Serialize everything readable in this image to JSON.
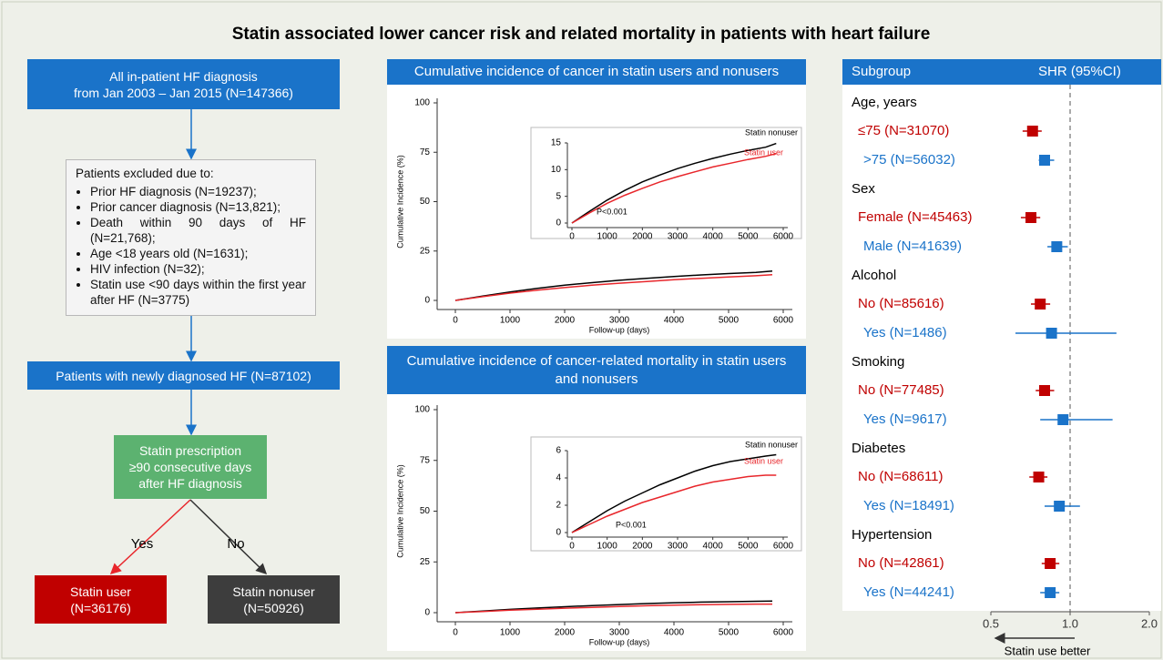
{
  "title": "Statin associated lower cancer risk and related mortality in patients with heart failure",
  "flowchart": {
    "start": [
      "All in-patient HF diagnosis",
      "from Jan 2003 – Jan 2015 (N=147366)"
    ],
    "exclusions": {
      "heading": "Patients excluded due to:",
      "items": [
        "Prior HF diagnosis (N=19237);",
        "Prior cancer diagnosis (N=13,821);",
        "Death within 90 days of HF (N=21,768);",
        "Age <18 years old (N=1631);",
        "HIV infection (N=32);",
        "Statin use <90 days within the first year after HF (N=3775)"
      ]
    },
    "cohort": "Patients with newly diagnosed HF (N=87102)",
    "criterion": [
      "Statin prescription",
      "≥90 consecutive days",
      "after HF diagnosis"
    ],
    "yes": "Yes",
    "no": "No",
    "user": [
      "Statin user",
      "(N=36176)"
    ],
    "nonuser": [
      "Statin nonuser",
      "(N=50926)"
    ]
  },
  "chart_data": [
    {
      "type": "line",
      "title": "Cumulative incidence of cancer in statin users and nonusers",
      "xlabel": "Follow-up (days)",
      "ylabel": "Cumulative Incidence (%)",
      "x": [
        0,
        500,
        1000,
        1500,
        2000,
        2500,
        3000,
        3500,
        4000,
        4500,
        5000,
        5500,
        5800
      ],
      "series": [
        {
          "name": "Statin nonuser",
          "color": "#000000",
          "values": [
            0,
            2.2,
            4.3,
            6.1,
            7.7,
            9.0,
            10.2,
            11.2,
            12.1,
            12.9,
            13.6,
            14.2,
            14.9
          ]
        },
        {
          "name": "Statin user",
          "color": "#e8262b",
          "values": [
            0,
            1.9,
            3.7,
            5.2,
            6.5,
            7.7,
            8.7,
            9.6,
            10.5,
            11.2,
            11.9,
            12.5,
            13.0
          ]
        }
      ],
      "xlim": [
        0,
        6000
      ],
      "xticks": [
        0,
        1000,
        2000,
        3000,
        4000,
        5000,
        6000
      ],
      "ylim": [
        0,
        100
      ],
      "yticks": [
        0,
        25,
        50,
        75,
        100
      ],
      "annotation": "P<0.001",
      "inset": {
        "xlim": [
          0,
          6000
        ],
        "xticks": [
          0,
          1000,
          2000,
          3000,
          4000,
          5000,
          6000
        ],
        "ylim": [
          0,
          15
        ],
        "yticks": [
          0,
          5,
          10,
          15
        ]
      }
    },
    {
      "type": "line",
      "title": "Cumulative incidence of cancer-related mortality in statin users and nonusers",
      "xlabel": "Follow-up (days)",
      "ylabel": "Cumulative Incidence (%)",
      "x": [
        0,
        500,
        1000,
        1500,
        2000,
        2500,
        3000,
        3500,
        4000,
        4500,
        5000,
        5500,
        5800
      ],
      "series": [
        {
          "name": "Statin nonuser",
          "color": "#000000",
          "values": [
            0,
            0.8,
            1.6,
            2.3,
            2.9,
            3.5,
            4.0,
            4.5,
            4.9,
            5.2,
            5.4,
            5.6,
            5.7
          ]
        },
        {
          "name": "Statin user",
          "color": "#e8262b",
          "values": [
            0,
            0.6,
            1.2,
            1.7,
            2.2,
            2.6,
            3.0,
            3.4,
            3.7,
            3.9,
            4.1,
            4.2,
            4.2
          ]
        }
      ],
      "xlim": [
        0,
        6000
      ],
      "xticks": [
        0,
        1000,
        2000,
        3000,
        4000,
        5000,
        6000
      ],
      "ylim": [
        0,
        100
      ],
      "yticks": [
        0,
        25,
        50,
        75,
        100
      ],
      "annotation": "P<0.001",
      "inset": {
        "xlim": [
          0,
          6000
        ],
        "xticks": [
          0,
          1000,
          2000,
          3000,
          4000,
          5000,
          6000
        ],
        "ylim": [
          0,
          6
        ],
        "yticks": [
          0,
          2,
          4,
          6
        ]
      }
    },
    {
      "type": "forest",
      "columns": [
        "Subgroup",
        "SHR (95%CI)"
      ],
      "groups": [
        {
          "name": "Age, years",
          "rows": [
            {
              "label": "≤75 (N=31070)",
              "color": "#c00000",
              "value": 0.72,
              "lower": 0.66,
              "upper": 0.78
            },
            {
              "label": ">75 (N=56032)",
              "color": "#1a73c9",
              "value": 0.8,
              "lower": 0.76,
              "upper": 0.87
            }
          ]
        },
        {
          "name": "Sex",
          "rows": [
            {
              "label": "Female (N=45463)",
              "color": "#c00000",
              "value": 0.71,
              "lower": 0.65,
              "upper": 0.77
            },
            {
              "label": "Male (N=41639)",
              "color": "#1a73c9",
              "value": 0.89,
              "lower": 0.82,
              "upper": 0.98
            }
          ]
        },
        {
          "name": "Alcohol",
          "rows": [
            {
              "label": "No (N=85616)",
              "color": "#c00000",
              "value": 0.77,
              "lower": 0.71,
              "upper": 0.84
            },
            {
              "label": "Yes (N=1486)",
              "color": "#1a73c9",
              "value": 0.85,
              "lower": 0.62,
              "upper": 1.5
            }
          ]
        },
        {
          "name": "Smoking",
          "rows": [
            {
              "label": "No (N=77485)",
              "color": "#c00000",
              "value": 0.8,
              "lower": 0.74,
              "upper": 0.87
            },
            {
              "label": "Yes (N=9617)",
              "color": "#1a73c9",
              "value": 0.94,
              "lower": 0.77,
              "upper": 1.45
            }
          ]
        },
        {
          "name": "Diabetes",
          "rows": [
            {
              "label": "No (N=68611)",
              "color": "#c00000",
              "value": 0.76,
              "lower": 0.7,
              "upper": 0.82
            },
            {
              "label": "Yes (N=18491)",
              "color": "#1a73c9",
              "value": 0.91,
              "lower": 0.8,
              "upper": 1.09
            }
          ]
        },
        {
          "name": "Hypertension",
          "rows": [
            {
              "label": "No (N=42861)",
              "color": "#c00000",
              "value": 0.84,
              "lower": 0.78,
              "upper": 0.91
            },
            {
              "label": "Yes (N=44241)",
              "color": "#1a73c9",
              "value": 0.84,
              "lower": 0.77,
              "upper": 0.91
            }
          ]
        }
      ],
      "xlim": [
        0.5,
        2.0
      ],
      "log": true,
      "xticks": [
        0.5,
        {
          "value": 1,
          "label": "1.0"
        },
        {
          "value": 2,
          "label": "2.0"
        }
      ],
      "reference": 1,
      "annotation": "Statin use better"
    }
  ]
}
